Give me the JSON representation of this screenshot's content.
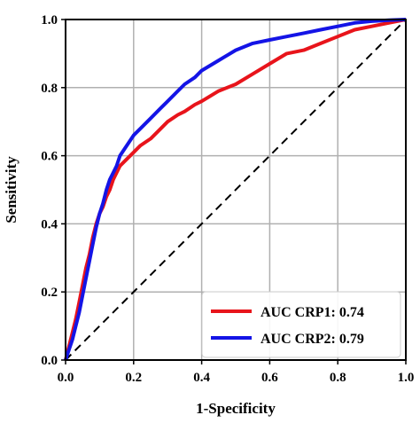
{
  "chart_data": {
    "type": "line",
    "title": "",
    "xlabel": "1-Specificity",
    "ylabel": "Sensitivity",
    "xlim": [
      0.0,
      1.0
    ],
    "ylim": [
      0.0,
      1.0
    ],
    "x_ticks": [
      "0.0",
      "0.2",
      "0.4",
      "0.6",
      "0.8",
      "1.0"
    ],
    "y_ticks": [
      "0.0",
      "0.2",
      "0.4",
      "0.6",
      "0.8",
      "1.0"
    ],
    "grid": true,
    "legend_position": "lower-right",
    "series": [
      {
        "name": "AUC CRP1: 0.74",
        "color": "#e8141b",
        "x": [
          0.0,
          0.01,
          0.02,
          0.03,
          0.04,
          0.05,
          0.06,
          0.07,
          0.08,
          0.09,
          0.1,
          0.11,
          0.12,
          0.13,
          0.14,
          0.15,
          0.16,
          0.18,
          0.2,
          0.22,
          0.25,
          0.28,
          0.3,
          0.33,
          0.35,
          0.38,
          0.4,
          0.45,
          0.5,
          0.55,
          0.6,
          0.65,
          0.7,
          0.75,
          0.8,
          0.85,
          0.9,
          0.95,
          1.0
        ],
        "y": [
          0.0,
          0.04,
          0.08,
          0.12,
          0.17,
          0.22,
          0.27,
          0.31,
          0.36,
          0.4,
          0.43,
          0.45,
          0.48,
          0.5,
          0.53,
          0.55,
          0.57,
          0.59,
          0.61,
          0.63,
          0.65,
          0.68,
          0.7,
          0.72,
          0.73,
          0.75,
          0.76,
          0.79,
          0.81,
          0.84,
          0.87,
          0.9,
          0.91,
          0.93,
          0.95,
          0.97,
          0.98,
          0.99,
          1.0
        ]
      },
      {
        "name": "AUC CRP2: 0.79",
        "color": "#1414e6",
        "x": [
          0.0,
          0.01,
          0.02,
          0.03,
          0.04,
          0.05,
          0.06,
          0.07,
          0.08,
          0.09,
          0.1,
          0.11,
          0.12,
          0.13,
          0.14,
          0.15,
          0.16,
          0.18,
          0.2,
          0.22,
          0.25,
          0.28,
          0.3,
          0.33,
          0.35,
          0.38,
          0.4,
          0.45,
          0.5,
          0.55,
          0.6,
          0.65,
          0.7,
          0.75,
          0.8,
          0.85,
          0.9,
          0.95,
          1.0
        ],
        "y": [
          0.0,
          0.03,
          0.06,
          0.1,
          0.14,
          0.19,
          0.24,
          0.29,
          0.34,
          0.39,
          0.43,
          0.46,
          0.5,
          0.53,
          0.55,
          0.57,
          0.6,
          0.63,
          0.66,
          0.68,
          0.71,
          0.74,
          0.76,
          0.79,
          0.81,
          0.83,
          0.85,
          0.88,
          0.91,
          0.93,
          0.94,
          0.95,
          0.96,
          0.97,
          0.98,
          0.99,
          0.995,
          0.998,
          1.0
        ]
      },
      {
        "name": "",
        "color": "#000000",
        "dashed": true,
        "x": [
          0.0,
          1.0
        ],
        "y": [
          0.0,
          1.0
        ]
      }
    ]
  }
}
